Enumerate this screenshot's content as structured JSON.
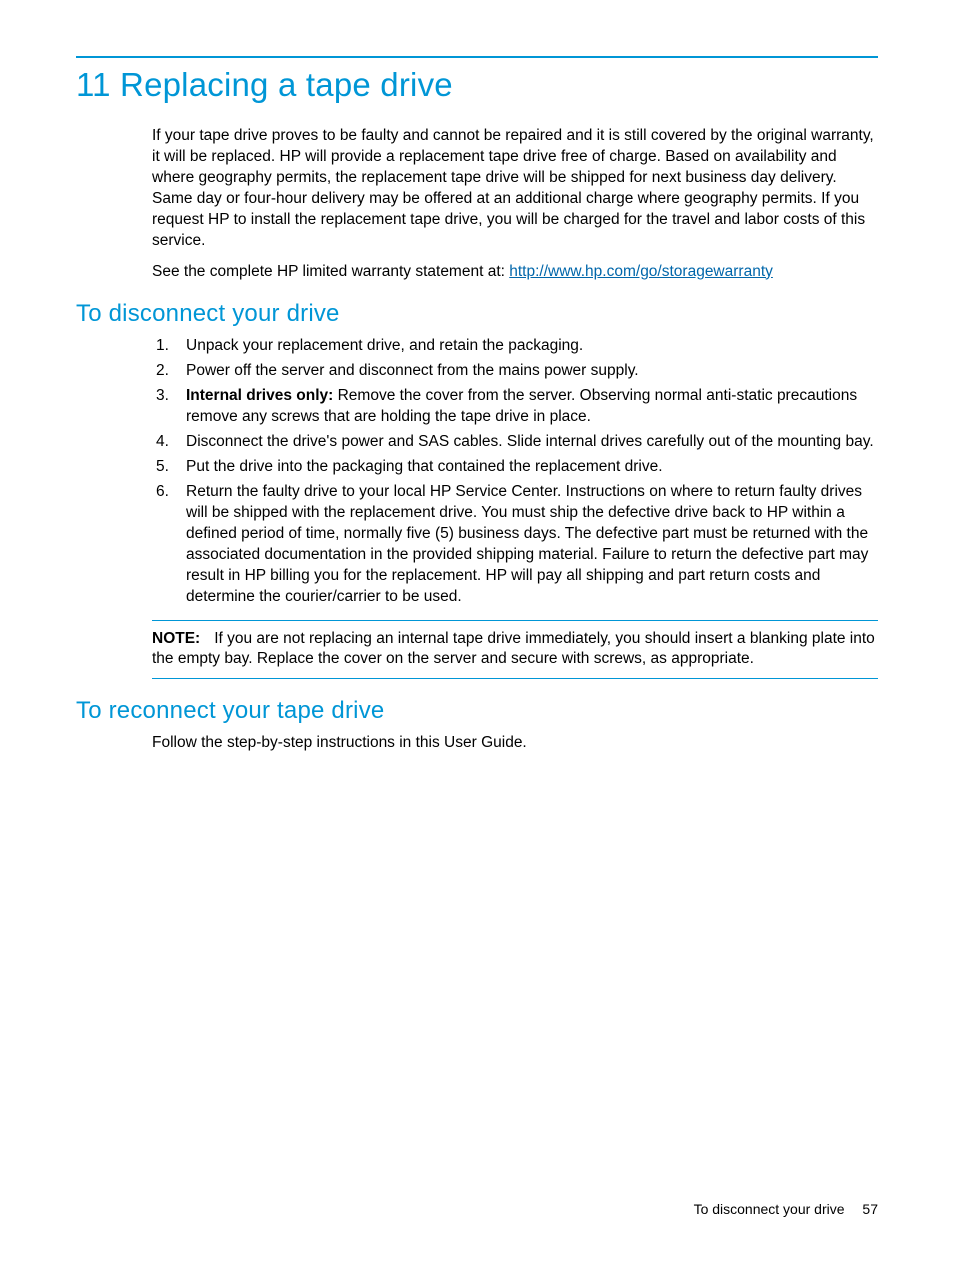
{
  "colors": {
    "rule": "#0096d6",
    "heading": "#0096d6",
    "link": "#0066aa",
    "note_border": "#0096d6",
    "text": "#000000",
    "background": "#ffffff"
  },
  "chapter": {
    "number": "11",
    "title": "Replacing a tape drive"
  },
  "intro": {
    "p1": "If your tape drive proves to be faulty and cannot be repaired and it is still covered by the original warranty, it will be replaced. HP will provide a replacement tape drive free of charge. Based on availability and where geography permits, the replacement tape drive will be shipped for next business day delivery. Same day or four-hour delivery may be offered at an additional charge where geography permits. If you request HP to install the replacement tape drive, you will be charged for the travel and labor costs of this service.",
    "p2_pre": "See the complete HP limited warranty statement at: ",
    "p2_link": "http://www.hp.com/go/storagewarranty"
  },
  "section1": {
    "heading": "To disconnect your drive",
    "steps": [
      {
        "n": "1.",
        "bold": "",
        "text": "Unpack your replacement drive, and retain the packaging."
      },
      {
        "n": "2.",
        "bold": "",
        "text": "Power off the server and disconnect from the mains power supply."
      },
      {
        "n": "3.",
        "bold": "Internal drives only:",
        "text": " Remove the cover from the server. Observing normal anti-static precautions remove any screws that are holding the tape drive in place."
      },
      {
        "n": "4.",
        "bold": "",
        "text": "Disconnect the drive's power and SAS cables. Slide internal drives carefully out of the mounting bay."
      },
      {
        "n": "5.",
        "bold": "",
        "text": "Put the drive into the packaging that contained the replacement drive."
      },
      {
        "n": "6.",
        "bold": "",
        "text": "Return the faulty drive to your local HP Service Center. Instructions on where to return faulty drives will be shipped with the replacement drive. You must ship the defective drive back to HP within a defined period of time, normally five (5) business days. The defective part must be returned with the associated documentation in the provided shipping material. Failure to return the defective part may result in HP billing you for the replacement. HP will pay all shipping and part return costs and determine the courier/carrier to be used."
      }
    ],
    "note_label": "NOTE:",
    "note_text": "If you are not replacing an internal tape drive immediately, you should insert a blanking plate into the empty bay. Replace the cover on the server and secure with screws, as appropriate."
  },
  "section2": {
    "heading": "To reconnect your tape drive",
    "p1": "Follow the step-by-step instructions in this User Guide."
  },
  "footer": {
    "section_ref": "To disconnect your drive",
    "page_number": "57"
  }
}
